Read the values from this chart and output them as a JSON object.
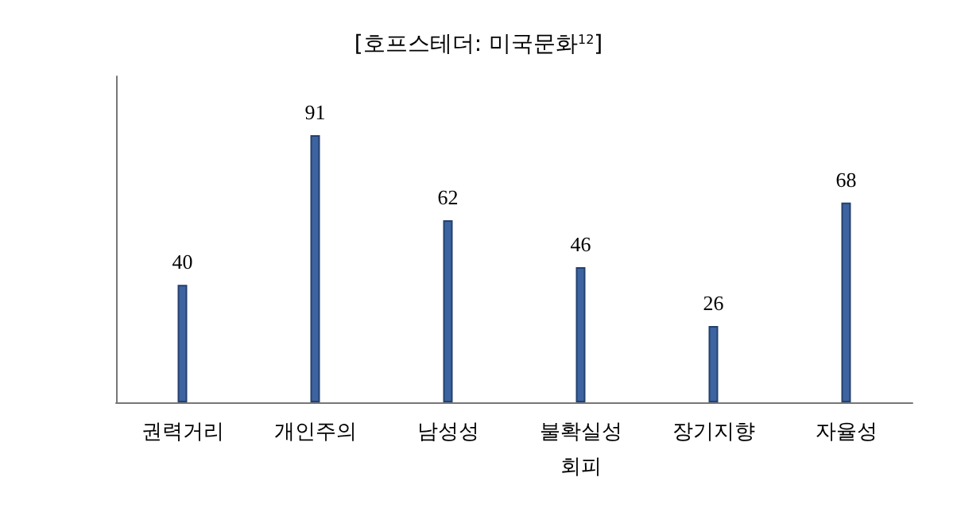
{
  "chart_data": {
    "type": "bar",
    "title": "[호프스테더: 미국문화$^{12}$]",
    "categories": [
      "권력거리",
      "개인주의",
      "남성성",
      "불확실성 회피",
      "장기지향",
      "자율성"
    ],
    "values": [
      40,
      91,
      62,
      46,
      26,
      68
    ],
    "color": "#3d64a0",
    "data_labels": true
  }
}
